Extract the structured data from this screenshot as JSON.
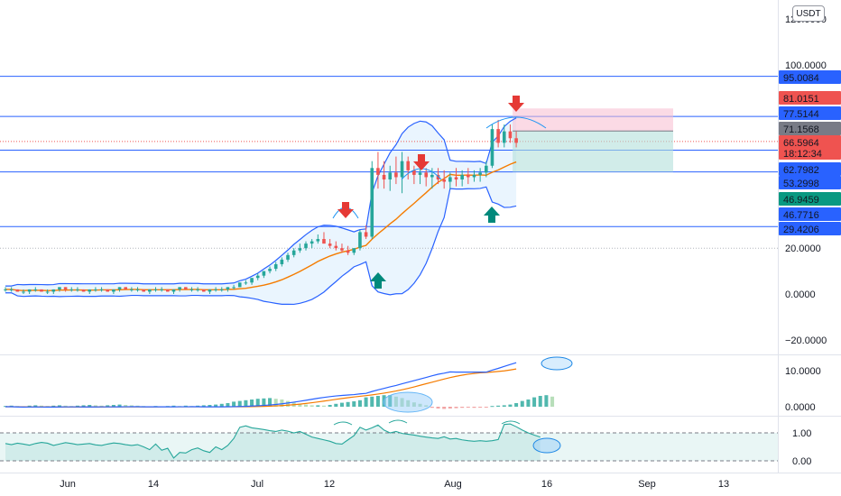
{
  "currency_button": "USDT",
  "colors": {
    "up": "#26a69a",
    "down": "#ef5350",
    "hline": "#2962ff",
    "bollinger": "#2962ff",
    "ma": "#f57c00",
    "rsi": "#26a69a",
    "arrow_up": "#00897b",
    "arrow_down": "#e53935",
    "highlight": "#90caf9"
  },
  "chart_data": [
    {
      "type": "candlestick",
      "panel": "price",
      "x": [
        "Jun",
        "14",
        "Jul",
        "12",
        "Aug",
        "16",
        "Sep",
        "13"
      ],
      "y_ticks": [
        "120.0000",
        "100.0000",
        "20.0000",
        "0.0000",
        "−20.0000"
      ],
      "horizontal_levels": [
        {
          "label": "95.0084",
          "value": 95.0084,
          "style": "solid-blue"
        },
        {
          "label": "81.0151",
          "value": 81.0151,
          "style": "red"
        },
        {
          "label": "77.5144",
          "value": 77.5144,
          "style": "solid-blue"
        },
        {
          "label": "71.1568",
          "value": 71.1568,
          "style": "gray"
        },
        {
          "label": "66.5964",
          "sublabel": "18:12:34",
          "value": 66.5964,
          "style": "red-last"
        },
        {
          "label": "62.7982",
          "value": 62.7982,
          "style": "solid-blue"
        },
        {
          "label": "53.2998",
          "value": 53.2998,
          "style": "solid-blue"
        },
        {
          "label": "46.9459",
          "value": 46.9459,
          "style": "green"
        },
        {
          "label": "46.7716",
          "value": 46.7716,
          "style": "blue-light"
        },
        {
          "label": "29.4206",
          "value": 29.4206,
          "style": "solid-blue"
        }
      ],
      "series": [
        {
          "name": "",
          "kind": "ohlc",
          "values": [
            [
              2,
              3,
              1,
              2
            ],
            [
              2,
              3,
              1,
              2
            ],
            [
              2,
              2,
              1,
              1
            ],
            [
              1,
              2,
              0,
              1
            ],
            [
              1,
              2,
              0,
              2
            ],
            [
              2,
              3,
              1,
              2
            ],
            [
              2,
              2,
              1,
              1
            ],
            [
              1,
              2,
              0,
              1
            ],
            [
              1,
              2,
              0,
              2
            ],
            [
              2,
              3,
              1,
              3
            ],
            [
              3,
              3,
              1,
              2
            ],
            [
              2,
              3,
              1,
              2
            ],
            [
              2,
              3,
              1,
              2
            ],
            [
              2,
              2,
              1,
              1
            ],
            [
              1,
              2,
              0,
              2
            ],
            [
              2,
              3,
              1,
              2
            ],
            [
              2,
              3,
              1,
              2
            ],
            [
              2,
              2,
              1,
              1
            ],
            [
              1,
              2,
              0,
              2
            ],
            [
              2,
              3,
              1,
              3
            ],
            [
              3,
              3,
              2,
              2
            ],
            [
              2,
              3,
              1,
              2
            ],
            [
              2,
              3,
              1,
              2
            ],
            [
              2,
              2,
              1,
              1
            ],
            [
              1,
              2,
              0,
              2
            ],
            [
              2,
              3,
              1,
              2
            ],
            [
              2,
              3,
              1,
              2
            ],
            [
              2,
              2,
              1,
              1
            ],
            [
              1,
              2,
              0,
              2
            ],
            [
              2,
              3,
              1,
              3
            ],
            [
              3,
              3,
              2,
              2
            ],
            [
              2,
              3,
              1,
              2
            ],
            [
              2,
              3,
              1,
              2
            ],
            [
              2,
              2,
              1,
              1
            ],
            [
              1,
              2,
              0,
              2
            ],
            [
              2,
              3,
              1,
              2
            ],
            [
              2,
              3,
              1,
              2
            ],
            [
              2,
              3,
              1,
              3
            ],
            [
              3,
              4,
              2,
              3
            ],
            [
              3,
              5,
              3,
              5
            ],
            [
              5,
              6,
              4,
              5
            ],
            [
              5,
              7,
              4,
              7
            ],
            [
              7,
              9,
              6,
              8
            ],
            [
              8,
              10,
              7,
              10
            ],
            [
              10,
              12,
              9,
              11
            ],
            [
              11,
              14,
              10,
              13
            ],
            [
              13,
              16,
              12,
              15
            ],
            [
              15,
              18,
              14,
              17
            ],
            [
              17,
              20,
              16,
              19
            ],
            [
              19,
              22,
              18,
              20
            ],
            [
              20,
              23,
              19,
              22
            ],
            [
              22,
              24,
              20,
              23
            ],
            [
              23,
              26,
              22,
              24
            ],
            [
              24,
              27,
              22,
              22
            ],
            [
              22,
              24,
              20,
              21
            ],
            [
              21,
              23,
              19,
              20
            ],
            [
              20,
              22,
              18,
              19
            ],
            [
              19,
              21,
              17,
              18
            ],
            [
              18,
              20,
              17,
              20
            ],
            [
              20,
              28,
              19,
              27
            ],
            [
              27,
              30,
              24,
              25
            ],
            [
              25,
              58,
              24,
              55
            ],
            [
              55,
              62,
              46,
              52
            ],
            [
              52,
              58,
              46,
              50
            ],
            [
              50,
              56,
              45,
              53
            ],
            [
              53,
              60,
              48,
              51
            ],
            [
              51,
              62,
              44,
              58
            ],
            [
              58,
              60,
              50,
              54
            ],
            [
              54,
              56,
              48,
              52
            ],
            [
              52,
              55,
              48,
              53
            ],
            [
              53,
              55,
              47,
              51
            ],
            [
              51,
              55,
              46,
              52
            ],
            [
              52,
              55,
              48,
              50
            ],
            [
              50,
              54,
              46,
              49
            ],
            [
              49,
              53,
              46,
              51
            ],
            [
              51,
              55,
              47,
              50
            ],
            [
              50,
              54,
              47,
              52
            ],
            [
              52,
              55,
              48,
              51
            ],
            [
              51,
              54,
              49,
              52
            ],
            [
              52,
              55,
              49,
              53
            ],
            [
              53,
              58,
              51,
              56
            ],
            [
              56,
              74,
              55,
              72
            ],
            [
              72,
              76,
              64,
              66
            ],
            [
              66,
              74,
              64,
              71
            ],
            [
              71,
              74,
              66,
              68
            ],
            [
              68,
              71,
              64,
              66
            ]
          ]
        },
        {
          "name": "",
          "kind": "line",
          "role": "bollinger-upper"
        },
        {
          "name": "",
          "kind": "line",
          "role": "bollinger-lower"
        },
        {
          "name": "",
          "kind": "line",
          "role": "moving-average"
        }
      ],
      "annotations": {
        "arrows_down": 3,
        "arrows_up": 3,
        "long_position_box": {
          "entry": 71.1568,
          "stop": 81.0151,
          "target": 53.2998
        }
      }
    },
    {
      "type": "bar",
      "panel": "macd",
      "y_ticks": [
        "10.0000",
        "0.0000"
      ],
      "series": [
        {
          "name": "",
          "kind": "histogram",
          "values": [
            0.2,
            0.3,
            0.2,
            0.1,
            0.3,
            0.4,
            0.3,
            0.2,
            0.3,
            0.4,
            0.3,
            0.2,
            0.3,
            0.4,
            0.5,
            0.4,
            0.3,
            0.4,
            0.5,
            0.6,
            0.5,
            0.4,
            0.3,
            0.2,
            0.1,
            0.2,
            0.1,
            0.2,
            0.3,
            0.2,
            0.3,
            0.2,
            0.3,
            0.4,
            0.5,
            0.6,
            0.8,
            1.0,
            1.4,
            1.6,
            1.8,
            2.0,
            2.2,
            2.3,
            2.4,
            2.2,
            2.0,
            1.6,
            1.2,
            0.8,
            0.6,
            0.4,
            0.4,
            0.3,
            0.5,
            0.8,
            1.1,
            1.3,
            1.5,
            1.8,
            2.6,
            2.8,
            3.0,
            3.2,
            3.2,
            2.8,
            2.4,
            1.8,
            1.2,
            0.8,
            0.4,
            -0.3,
            -0.5,
            -0.6,
            -0.5,
            -0.4,
            -0.3,
            -0.2,
            -0.3,
            -0.2,
            -0.1,
            0.2,
            0.3,
            0.4,
            0.6,
            1.0,
            1.6,
            2.0,
            2.6,
            3.0,
            3.2,
            2.8
          ]
        },
        {
          "name": "",
          "kind": "line",
          "role": "macd-line"
        },
        {
          "name": "",
          "kind": "line",
          "role": "signal-line"
        }
      ]
    },
    {
      "type": "line",
      "panel": "rsi",
      "y_ticks": [
        "1.00",
        "0.00"
      ],
      "series": [
        {
          "name": "",
          "kind": "line",
          "values": [
            0.62,
            0.58,
            0.63,
            0.6,
            0.56,
            0.62,
            0.66,
            0.63,
            0.55,
            0.6,
            0.65,
            0.62,
            0.58,
            0.6,
            0.62,
            0.57,
            0.55,
            0.6,
            0.64,
            0.62,
            0.58,
            0.55,
            0.58,
            0.5,
            0.4,
            0.6,
            0.38,
            0.45,
            0.1,
            0.3,
            0.28,
            0.4,
            0.46,
            0.36,
            0.3,
            0.5,
            0.4,
            0.55,
            0.8,
            1.2,
            1.25,
            1.18,
            1.15,
            1.12,
            1.08,
            1.05,
            1.1,
            1.06,
            1.0,
            1.05,
            0.95,
            0.85,
            0.8,
            0.75,
            0.7,
            0.62,
            0.6,
            0.75,
            0.9,
            1.2,
            1.1,
            1.18,
            1.28,
            1.1,
            1.0,
            1.05,
            0.98,
            0.95,
            0.92,
            0.88,
            0.85,
            0.82,
            0.8,
            0.86,
            0.78,
            0.8,
            0.75,
            0.72,
            0.7,
            0.72,
            0.7,
            0.72,
            0.76,
            1.3,
            1.32,
            1.22,
            1.1,
            1.0,
            0.92,
            0.85
          ]
        }
      ]
    }
  ]
}
